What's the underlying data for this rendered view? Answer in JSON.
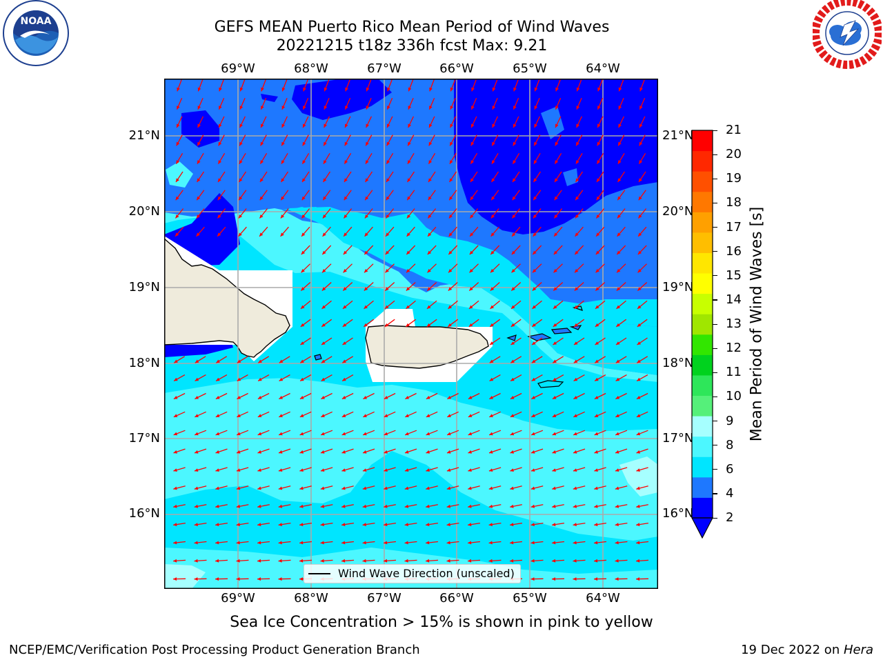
{
  "title": {
    "line1": "GEFS MEAN Puerto Rico Mean Period of Wind Waves",
    "line2": "20221215 t18z 336h fcst   Max: 9.21"
  },
  "map": {
    "lon_labels": [
      "69°W",
      "68°W",
      "67°W",
      "66°W",
      "65°W",
      "64°W"
    ],
    "lat_labels": [
      "21°N",
      "20°N",
      "19°N",
      "18°N",
      "17°N",
      "16°N"
    ],
    "legend_text": "Wind Wave Direction (unscaled)"
  },
  "colorbar": {
    "label": "Mean Period of Wind Waves [s]",
    "ticks": [
      "21",
      "20",
      "19",
      "18",
      "17",
      "16",
      "15",
      "14",
      "13",
      "12",
      "11",
      "10",
      "9",
      "8",
      "6",
      "4",
      "2"
    ],
    "colors": [
      "#0000ff",
      "#1e78ff",
      "#00e5ff",
      "#4cf7ff",
      "#a6ffff",
      "#55f07a",
      "#2ee65a",
      "#00d21e",
      "#32e600",
      "#a0e600",
      "#c8ff00",
      "#ffff00",
      "#ffe600",
      "#ffbe00",
      "#ffa000",
      "#ff7800",
      "#ff5000",
      "#ff2800",
      "#ff0000"
    ]
  },
  "note": "Sea Ice Concentration > 15% is shown in pink to yellow",
  "footer": {
    "left": "NCEP/EMC/Verification Post Processing Product Generation Branch",
    "right_prefix": "19 Dec 2022 on ",
    "right_host": "Hera"
  },
  "logos": {
    "noaa": "NOAA",
    "noaa_ring": "NATIONAL OCEANIC AND ATMOSPHERIC ADMINISTRATION · U.S. DEPARTMENT OF COMMERCE",
    "nws_ring": "NATIONAL WEATHER SERVICE"
  }
}
